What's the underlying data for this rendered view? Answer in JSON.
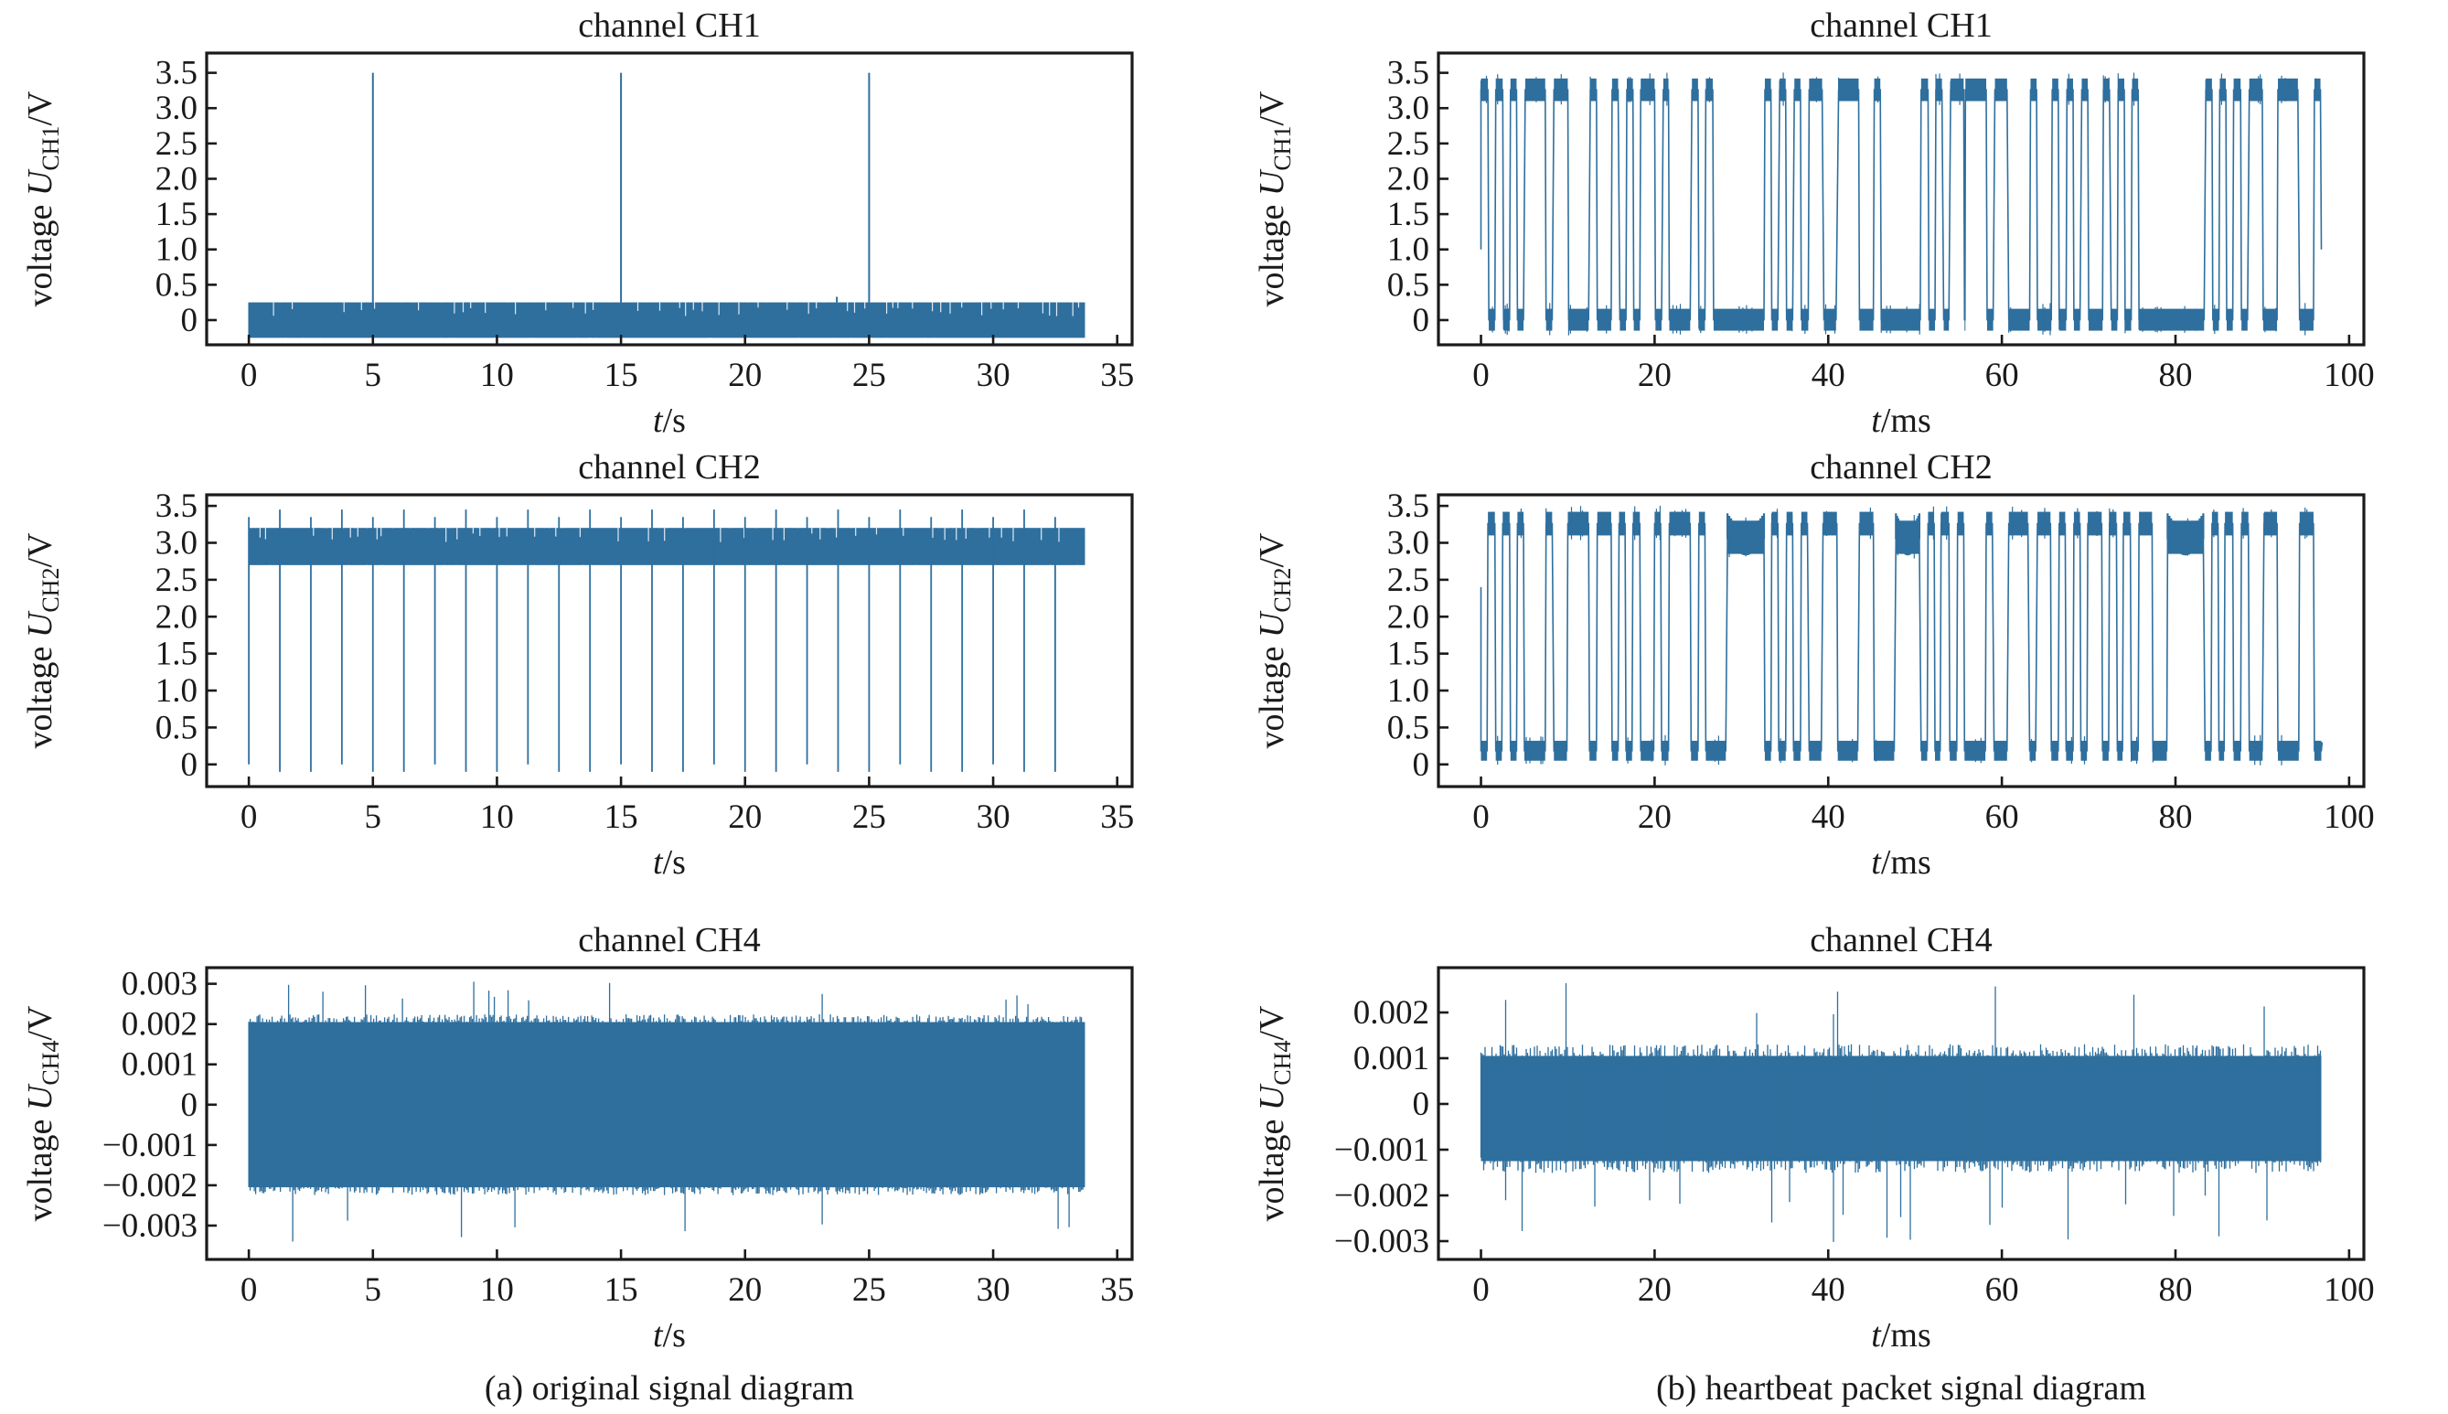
{
  "figure": {
    "captions": [
      "(a) original signal diagram",
      "(b) heartbeat packet signal diagram"
    ],
    "line_color": "#2e6f9e",
    "axes_color": "#1a1a1a"
  },
  "chart_data": [
    {
      "id": "a-ch1",
      "type": "line",
      "title": "channel CH1",
      "xlabel_italic": "t",
      "xlabel_unit": "/s",
      "ylabel_prefix": "voltage ",
      "ylabel_symbol": "U",
      "ylabel_sub": "CH1",
      "ylabel_unit": "/V",
      "xlim": [
        -1.7,
        35.6
      ],
      "ylim": [
        -0.35,
        3.78
      ],
      "xticks": [
        0,
        5,
        10,
        15,
        20,
        25,
        30,
        35
      ],
      "xtick_labels": [
        "0",
        "5",
        "10",
        "15",
        "20",
        "25",
        "30",
        "35"
      ],
      "yticks": [
        0,
        0.5,
        1.0,
        1.5,
        2.0,
        2.5,
        3.0,
        3.5
      ],
      "ytick_labels": [
        "0",
        "0.5",
        "1.0",
        "1.5",
        "2.0",
        "2.5",
        "3.0",
        "3.5"
      ],
      "signal": {
        "kind": "noise_band",
        "t_start": 0,
        "t_end": 33.7,
        "band": [
          -0.25,
          0.25
        ],
        "spikes": [
          [
            5,
            3.5
          ],
          [
            15,
            3.5
          ],
          [
            25,
            3.5
          ],
          [
            23.7,
            0.33
          ]
        ]
      }
    },
    {
      "id": "a-ch2",
      "type": "line",
      "title": "channel CH2",
      "xlabel_italic": "t",
      "xlabel_unit": "/s",
      "ylabel_prefix": "voltage ",
      "ylabel_symbol": "U",
      "ylabel_sub": "CH2",
      "ylabel_unit": "/V",
      "xlim": [
        -1.7,
        35.6
      ],
      "ylim": [
        -0.3,
        3.65
      ],
      "xticks": [
        0,
        5,
        10,
        15,
        20,
        25,
        30,
        35
      ],
      "xtick_labels": [
        "0",
        "5",
        "10",
        "15",
        "20",
        "25",
        "30",
        "35"
      ],
      "yticks": [
        0,
        0.5,
        1.0,
        1.5,
        2.0,
        2.5,
        3.0,
        3.5
      ],
      "ytick_labels": [
        "0",
        "0.5",
        "1.0",
        "1.5",
        "2.0",
        "2.5",
        "3.0",
        "3.5"
      ],
      "signal": {
        "kind": "noise_band_with_dips",
        "t_start": 0,
        "t_end": 33.7,
        "band": [
          2.7,
          3.2
        ],
        "dip_period": 1.25,
        "dip_level": -0.1,
        "peak_level": 3.45
      }
    },
    {
      "id": "a-ch4",
      "type": "line",
      "title": "channel CH4",
      "xlabel_italic": "t",
      "xlabel_unit": "/s",
      "ylabel_prefix": "voltage ",
      "ylabel_symbol": "U",
      "ylabel_sub": "CH4",
      "ylabel_unit": "/V",
      "xlim": [
        -1.7,
        35.6
      ],
      "ylim": [
        -0.00384,
        0.0034
      ],
      "xticks": [
        0,
        5,
        10,
        15,
        20,
        25,
        30,
        35
      ],
      "xtick_labels": [
        "0",
        "5",
        "10",
        "15",
        "20",
        "25",
        "30",
        "35"
      ],
      "yticks": [
        0.003,
        0.002,
        0.001,
        0,
        -0.001,
        -0.002,
        -0.003
      ],
      "ytick_labels": [
        "0.003",
        "0.002",
        "0.001",
        "0",
        "−0.001",
        "−0.002",
        "−0.003"
      ],
      "signal": {
        "kind": "noise_band",
        "t_start": 0,
        "t_end": 33.7,
        "band": [
          -0.00205,
          0.00205
        ],
        "fringe": 0.0003,
        "spike_max": 0.0031,
        "spike_min": -0.0035
      }
    },
    {
      "id": "b-ch1",
      "type": "line",
      "title": "channel CH1",
      "xlabel_italic": "t",
      "xlabel_unit": "/ms",
      "ylabel_prefix": "voltage ",
      "ylabel_symbol": "U",
      "ylabel_sub": "CH1",
      "ylabel_unit": "/V",
      "xlim": [
        -4.9,
        101.7
      ],
      "ylim": [
        -0.35,
        3.78
      ],
      "xticks": [
        0,
        20,
        40,
        60,
        80,
        100
      ],
      "xtick_labels": [
        "0",
        "20",
        "40",
        "60",
        "80",
        "100"
      ],
      "yticks": [
        0,
        0.5,
        1.0,
        1.5,
        2.0,
        2.5,
        3.0,
        3.5
      ],
      "ytick_labels": [
        "0",
        "0.5",
        "1.0",
        "1.5",
        "2.0",
        "2.5",
        "3.0",
        "3.5"
      ],
      "signal": {
        "kind": "digital",
        "start_value": 1.0,
        "end_value": 1.0,
        "high": [
          3.1,
          3.42
        ],
        "low": [
          -0.15,
          0.16
        ],
        "segments": [
          [
            0,
            0.8,
            "H"
          ],
          [
            0.9,
            1.6,
            "L"
          ],
          [
            1.7,
            2.5,
            "H"
          ],
          [
            2.6,
            3.3,
            "L"
          ],
          [
            3.4,
            4.1,
            "H"
          ],
          [
            4.2,
            4.9,
            "L"
          ],
          [
            5.1,
            7.4,
            "H"
          ],
          [
            7.5,
            8.2,
            "L"
          ],
          [
            8.4,
            10.0,
            "H"
          ],
          [
            10.1,
            12.4,
            "L"
          ],
          [
            12.6,
            13.3,
            "H"
          ],
          [
            13.4,
            15.0,
            "L"
          ],
          [
            15.1,
            15.8,
            "H"
          ],
          [
            16.0,
            16.7,
            "L"
          ],
          [
            16.8,
            17.5,
            "H"
          ],
          [
            17.6,
            18.3,
            "L"
          ],
          [
            18.4,
            20.0,
            "H"
          ],
          [
            20.1,
            20.8,
            "L"
          ],
          [
            21.0,
            21.6,
            "H"
          ],
          [
            21.7,
            24.1,
            "L"
          ],
          [
            24.3,
            25.0,
            "H"
          ],
          [
            25.1,
            25.8,
            "L"
          ],
          [
            25.9,
            26.7,
            "H"
          ],
          [
            26.8,
            32.6,
            "L"
          ],
          [
            32.7,
            33.4,
            "H"
          ],
          [
            33.5,
            34.2,
            "L"
          ],
          [
            34.4,
            35.1,
            "H"
          ],
          [
            35.2,
            35.9,
            "L"
          ],
          [
            36.1,
            36.8,
            "H"
          ],
          [
            36.9,
            37.7,
            "L"
          ],
          [
            37.8,
            39.3,
            "H"
          ],
          [
            39.5,
            40.9,
            "L"
          ],
          [
            41.2,
            43.5,
            "H"
          ],
          [
            43.6,
            45.2,
            "L"
          ],
          [
            45.3,
            46.0,
            "H"
          ],
          [
            46.1,
            50.6,
            "L"
          ],
          [
            50.7,
            51.5,
            "H"
          ],
          [
            51.6,
            52.3,
            "L"
          ],
          [
            52.4,
            53.1,
            "H"
          ],
          [
            53.3,
            53.9,
            "L"
          ],
          [
            54.1,
            55.6,
            "H"
          ],
          [
            55.7,
            55.75,
            "L"
          ],
          [
            55.8,
            58.2,
            "H"
          ],
          [
            58.3,
            59.0,
            "L"
          ],
          [
            59.2,
            60.6,
            "H"
          ],
          [
            60.8,
            63.2,
            "L"
          ],
          [
            63.3,
            64.0,
            "H"
          ],
          [
            64.1,
            65.7,
            "L"
          ],
          [
            65.8,
            66.5,
            "H"
          ],
          [
            66.6,
            67.4,
            "L"
          ],
          [
            67.5,
            68.2,
            "H"
          ],
          [
            68.3,
            69.0,
            "L"
          ],
          [
            69.2,
            69.9,
            "H"
          ],
          [
            70.0,
            71.6,
            "L"
          ],
          [
            71.7,
            72.4,
            "H"
          ],
          [
            72.6,
            73.3,
            "L"
          ],
          [
            73.4,
            74.1,
            "H"
          ],
          [
            74.2,
            74.9,
            "L"
          ],
          [
            75.0,
            75.7,
            "H"
          ],
          [
            75.8,
            83.3,
            "L"
          ],
          [
            83.5,
            84.2,
            "H"
          ],
          [
            84.3,
            85.0,
            "L"
          ],
          [
            85.1,
            85.8,
            "H"
          ],
          [
            85.9,
            86.6,
            "L"
          ],
          [
            86.7,
            87.5,
            "H"
          ],
          [
            87.6,
            88.3,
            "L"
          ],
          [
            88.5,
            90.0,
            "H"
          ],
          [
            90.1,
            91.7,
            "L"
          ],
          [
            91.8,
            94.1,
            "H"
          ],
          [
            94.3,
            95.9,
            "L"
          ],
          [
            96.0,
            96.7,
            "H"
          ]
        ]
      }
    },
    {
      "id": "b-ch2",
      "type": "line",
      "title": "channel CH2",
      "xlabel_italic": "t",
      "xlabel_unit": "/ms",
      "ylabel_prefix": "voltage ",
      "ylabel_symbol": "U",
      "ylabel_sub": "CH2",
      "ylabel_unit": "/V",
      "xlim": [
        -4.9,
        101.7
      ],
      "ylim": [
        -0.3,
        3.65
      ],
      "xticks": [
        0,
        20,
        40,
        60,
        80,
        100
      ],
      "xtick_labels": [
        "0",
        "20",
        "40",
        "60",
        "80",
        "100"
      ],
      "yticks": [
        0,
        0.5,
        1.0,
        1.5,
        2.0,
        2.5,
        3.0,
        3.5
      ],
      "ytick_labels": [
        "0",
        "0.5",
        "1.0",
        "1.5",
        "2.0",
        "2.5",
        "3.0",
        "3.5"
      ],
      "signal": {
        "kind": "digital",
        "start_value": 2.4,
        "end_value": 0.3,
        "high": [
          3.1,
          3.42
        ],
        "low": [
          0.05,
          0.32
        ],
        "sag": [
          2.85,
          3.3
        ],
        "segments": [
          [
            0,
            0.7,
            "L"
          ],
          [
            0.8,
            1.6,
            "H"
          ],
          [
            1.7,
            2.4,
            "L"
          ],
          [
            2.5,
            3.3,
            "H"
          ],
          [
            3.4,
            4.1,
            "L"
          ],
          [
            4.2,
            4.9,
            "H"
          ],
          [
            5.0,
            7.4,
            "L"
          ],
          [
            7.5,
            8.2,
            "H"
          ],
          [
            8.4,
            9.9,
            "L"
          ],
          [
            10.0,
            12.4,
            "H"
          ],
          [
            12.5,
            13.3,
            "L"
          ],
          [
            13.4,
            15.0,
            "H"
          ],
          [
            15.1,
            15.8,
            "L"
          ],
          [
            15.9,
            16.6,
            "H"
          ],
          [
            16.7,
            17.4,
            "L"
          ],
          [
            17.5,
            18.3,
            "H"
          ],
          [
            18.4,
            19.9,
            "L"
          ],
          [
            20.0,
            20.7,
            "H"
          ],
          [
            20.8,
            21.6,
            "L"
          ],
          [
            21.7,
            24.1,
            "H"
          ],
          [
            24.2,
            25.0,
            "L"
          ],
          [
            25.1,
            25.8,
            "H"
          ],
          [
            25.9,
            28.2,
            "L"
          ],
          [
            28.4,
            32.6,
            "S"
          ],
          [
            32.7,
            33.4,
            "L"
          ],
          [
            33.5,
            34.2,
            "H"
          ],
          [
            34.3,
            35.1,
            "L"
          ],
          [
            35.2,
            35.9,
            "H"
          ],
          [
            36.0,
            36.8,
            "L"
          ],
          [
            36.9,
            37.6,
            "H"
          ],
          [
            37.8,
            39.2,
            "L"
          ],
          [
            39.4,
            41.0,
            "H"
          ],
          [
            41.1,
            43.4,
            "L"
          ],
          [
            43.6,
            45.2,
            "H"
          ],
          [
            45.3,
            47.6,
            "L"
          ],
          [
            47.8,
            50.5,
            "S"
          ],
          [
            50.7,
            51.4,
            "L"
          ],
          [
            51.5,
            52.2,
            "H"
          ],
          [
            52.3,
            52.9,
            "L"
          ],
          [
            53.0,
            53.9,
            "H"
          ],
          [
            54.0,
            54.8,
            "L"
          ],
          [
            54.9,
            55.6,
            "H"
          ],
          [
            55.7,
            58.1,
            "L"
          ],
          [
            58.2,
            58.9,
            "H"
          ],
          [
            59.1,
            60.6,
            "L"
          ],
          [
            60.8,
            63.0,
            "H"
          ],
          [
            63.2,
            63.9,
            "L"
          ],
          [
            64.1,
            65.6,
            "H"
          ],
          [
            65.7,
            66.5,
            "L"
          ],
          [
            66.6,
            67.3,
            "H"
          ],
          [
            67.4,
            68.2,
            "L"
          ],
          [
            68.3,
            69.0,
            "H"
          ],
          [
            69.1,
            69.8,
            "L"
          ],
          [
            69.9,
            71.5,
            "H"
          ],
          [
            71.6,
            72.3,
            "L"
          ],
          [
            72.4,
            73.2,
            "H"
          ],
          [
            73.3,
            73.9,
            "L"
          ],
          [
            74.0,
            74.8,
            "H"
          ],
          [
            74.9,
            75.7,
            "L"
          ],
          [
            75.8,
            77.3,
            "H"
          ],
          [
            77.4,
            79.0,
            "L"
          ],
          [
            79.1,
            83.2,
            "S"
          ],
          [
            83.4,
            84.1,
            "L"
          ],
          [
            84.2,
            84.9,
            "H"
          ],
          [
            85.0,
            85.6,
            "L"
          ],
          [
            85.7,
            86.6,
            "H"
          ],
          [
            86.7,
            87.5,
            "L"
          ],
          [
            87.6,
            88.4,
            "H"
          ],
          [
            88.5,
            90.0,
            "L"
          ],
          [
            90.2,
            91.7,
            "H"
          ],
          [
            91.8,
            94.2,
            "L"
          ],
          [
            94.3,
            95.9,
            "H"
          ],
          [
            96.0,
            96.8,
            "L"
          ]
        ]
      }
    },
    {
      "id": "b-ch4",
      "type": "line",
      "title": "channel CH4",
      "xlabel_italic": "t",
      "xlabel_unit": "/ms",
      "ylabel_prefix": "voltage ",
      "ylabel_symbol": "U",
      "ylabel_sub": "CH4",
      "ylabel_unit": "/V",
      "xlim": [
        -4.9,
        101.7
      ],
      "ylim": [
        -0.0034,
        0.00298
      ],
      "xticks": [
        0,
        20,
        40,
        60,
        80,
        100
      ],
      "xtick_labels": [
        "0",
        "20",
        "40",
        "60",
        "80",
        "100"
      ],
      "yticks": [
        0.002,
        0.001,
        0,
        -0.001,
        -0.002,
        -0.003
      ],
      "ytick_labels": [
        "0.002",
        "0.001",
        "0",
        "−0.001",
        "−0.002",
        "−0.003"
      ],
      "signal": {
        "kind": "noise_band",
        "t_start": 0,
        "t_end": 96.8,
        "band": [
          -0.00125,
          0.00105
        ],
        "fringe": 0.0004,
        "spike_max": 0.0027,
        "spike_min": -0.0031
      }
    }
  ]
}
